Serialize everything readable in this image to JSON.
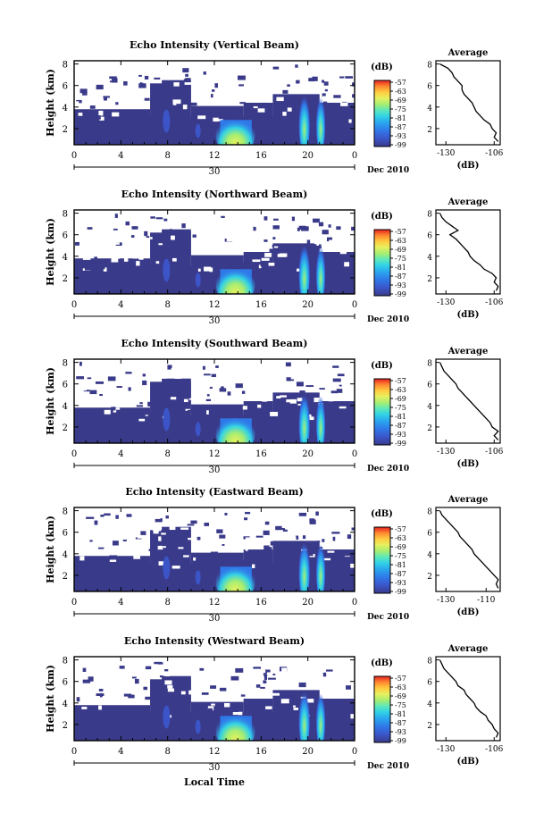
{
  "figure": {
    "xlabel": "Local Time",
    "date_label": "Dec 2010",
    "day_label": "30",
    "colorbar_unit": "(dB)",
    "avg_xlabel": "(dB)"
  },
  "colors": {
    "scale": [
      "#3a3a8a",
      "#3b55c8",
      "#2f78e8",
      "#2aa6ee",
      "#32d2e6",
      "#5ee8b8",
      "#a8ee70",
      "#e6f060",
      "#ffcc40",
      "#ff8a30",
      "#ff4a2a",
      "#e62020"
    ],
    "background": "#3a3a8a"
  },
  "chart_data": [
    {
      "type": "heatmap",
      "title": "Echo Intensity (Vertical Beam)",
      "ylabel": "Height (km)",
      "x_ticks": [
        "0",
        "4",
        "8",
        "12",
        "16",
        "20",
        "0"
      ],
      "y_ticks": [
        "8",
        "6",
        "4",
        "2"
      ],
      "ylim": [
        0.5,
        8.3
      ],
      "xlim": [
        0,
        24
      ],
      "colorbar_ticks": [
        "-57",
        "-63",
        "-69",
        "-75",
        "-81",
        "-87",
        "-93",
        "-99"
      ],
      "profile": {
        "title": "Average",
        "x_ticks": [
          "-130",
          "-106"
        ],
        "y_ticks": [
          "8",
          "6",
          "4",
          "2"
        ],
        "xlim": [
          -135,
          -103
        ],
        "ylim": [
          0.5,
          8.3
        ],
        "heights": [
          0.8,
          1.2,
          1.6,
          2.0,
          2.4,
          2.8,
          3.2,
          3.6,
          4.0,
          4.4,
          4.8,
          5.2,
          5.6,
          6.0,
          6.4,
          6.8,
          7.2,
          7.6,
          8.0
        ],
        "values": [
          -104,
          -106,
          -105,
          -107,
          -108,
          -111,
          -113,
          -115,
          -116,
          -117,
          -119,
          -121,
          -122,
          -122,
          -124,
          -126,
          -127,
          -129,
          -133
        ]
      }
    },
    {
      "type": "heatmap",
      "title": "Echo Intensity (Northward Beam)",
      "ylabel": "Height (km)",
      "x_ticks": [
        "0",
        "4",
        "8",
        "12",
        "16",
        "20",
        "0"
      ],
      "y_ticks": [
        "8",
        "6",
        "4",
        "2"
      ],
      "ylim": [
        0.5,
        8.3
      ],
      "xlim": [
        0,
        24
      ],
      "colorbar_ticks": [
        "-57",
        "-63",
        "-69",
        "-75",
        "-81",
        "-87",
        "-93",
        "-99"
      ],
      "profile": {
        "title": "Average",
        "x_ticks": [
          "-130",
          "-106"
        ],
        "y_ticks": [
          "8",
          "6",
          "4",
          "2"
        ],
        "xlim": [
          -135,
          -103
        ],
        "ylim": [
          0.5,
          8.3
        ],
        "heights": [
          0.8,
          1.2,
          1.6,
          2.0,
          2.4,
          2.8,
          3.2,
          3.6,
          4.0,
          4.4,
          4.8,
          5.2,
          5.6,
          6.0,
          6.4,
          6.8,
          7.2,
          7.6,
          8.0
        ],
        "values": [
          -105,
          -104,
          -106,
          -105,
          -107,
          -111,
          -113,
          -116,
          -118,
          -119,
          -121,
          -123,
          -125,
          -128,
          -124,
          -127,
          -130,
          -132,
          -133
        ]
      }
    },
    {
      "type": "heatmap",
      "title": "Echo Intensity (Southward Beam)",
      "ylabel": "Height (km)",
      "x_ticks": [
        "0",
        "4",
        "8",
        "12",
        "16",
        "20",
        "0"
      ],
      "y_ticks": [
        "8",
        "6",
        "4",
        "2"
      ],
      "ylim": [
        0.5,
        8.3
      ],
      "xlim": [
        0,
        24
      ],
      "colorbar_ticks": [
        "-57",
        "-63",
        "-69",
        "-75",
        "-81",
        "-87",
        "-93",
        "-99"
      ],
      "profile": {
        "title": "Average",
        "x_ticks": [
          "-130",
          "-106"
        ],
        "y_ticks": [
          "8",
          "6",
          "4",
          "2"
        ],
        "xlim": [
          -135,
          -103
        ],
        "ylim": [
          0.5,
          8.3
        ],
        "heights": [
          0.8,
          1.2,
          1.6,
          2.0,
          2.4,
          2.8,
          3.2,
          3.6,
          4.0,
          4.4,
          4.8,
          5.2,
          5.6,
          6.0,
          6.4,
          6.8,
          7.2,
          7.6,
          8.0
        ],
        "values": [
          -104,
          -106,
          -104,
          -107,
          -108,
          -110,
          -112,
          -114,
          -116,
          -118,
          -120,
          -122,
          -124,
          -125,
          -127,
          -129,
          -131,
          -132,
          -133
        ]
      }
    },
    {
      "type": "heatmap",
      "title": "Echo Intensity (Eastward Beam)",
      "ylabel": "Height (km)",
      "x_ticks": [
        "0",
        "4",
        "8",
        "12",
        "16",
        "20",
        "0"
      ],
      "y_ticks": [
        "8",
        "6",
        "4",
        "2"
      ],
      "ylim": [
        0.5,
        8.3
      ],
      "xlim": [
        0,
        24
      ],
      "colorbar_ticks": [
        "-57",
        "-63",
        "-69",
        "-75",
        "-81",
        "-87",
        "-93",
        "-99"
      ],
      "profile": {
        "title": "Average",
        "x_ticks": [
          "-130",
          "-110"
        ],
        "y_ticks": [
          "8",
          "6",
          "4",
          "2"
        ],
        "xlim": [
          -135,
          -103
        ],
        "ylim": [
          0.5,
          8.3
        ],
        "heights": [
          0.8,
          1.2,
          1.6,
          2.0,
          2.4,
          2.8,
          3.2,
          3.6,
          4.0,
          4.4,
          4.8,
          5.2,
          5.6,
          6.0,
          6.4,
          6.8,
          7.2,
          7.6,
          8.0
        ],
        "values": [
          -104,
          -105,
          -104,
          -106,
          -108,
          -110,
          -112,
          -114,
          -116,
          -117,
          -119,
          -121,
          -123,
          -124,
          -126,
          -128,
          -130,
          -132,
          -133
        ]
      }
    },
    {
      "type": "heatmap",
      "title": "Echo Intensity (Westward Beam)",
      "ylabel": "Height (km)",
      "x_ticks": [
        "0",
        "4",
        "8",
        "12",
        "16",
        "20",
        "0"
      ],
      "y_ticks": [
        "8",
        "6",
        "4",
        "2"
      ],
      "ylim": [
        0.5,
        8.3
      ],
      "xlim": [
        0,
        24
      ],
      "colorbar_ticks": [
        "-57",
        "-63",
        "-69",
        "-75",
        "-81",
        "-87",
        "-93",
        "-99"
      ],
      "profile": {
        "title": "Average",
        "x_ticks": [
          "-130",
          "-106"
        ],
        "y_ticks": [
          "8",
          "6",
          "4",
          "2"
        ],
        "xlim": [
          -135,
          -103
        ],
        "ylim": [
          0.5,
          8.3
        ],
        "heights": [
          0.8,
          1.2,
          1.6,
          2.0,
          2.4,
          2.8,
          3.2,
          3.6,
          4.0,
          4.4,
          4.8,
          5.2,
          5.6,
          6.0,
          6.4,
          6.8,
          7.2,
          7.6,
          8.0
        ],
        "values": [
          -105,
          -104,
          -106,
          -107,
          -109,
          -110,
          -113,
          -115,
          -116,
          -118,
          -120,
          -121,
          -124,
          -125,
          -127,
          -129,
          -131,
          -132,
          -133
        ]
      }
    }
  ]
}
